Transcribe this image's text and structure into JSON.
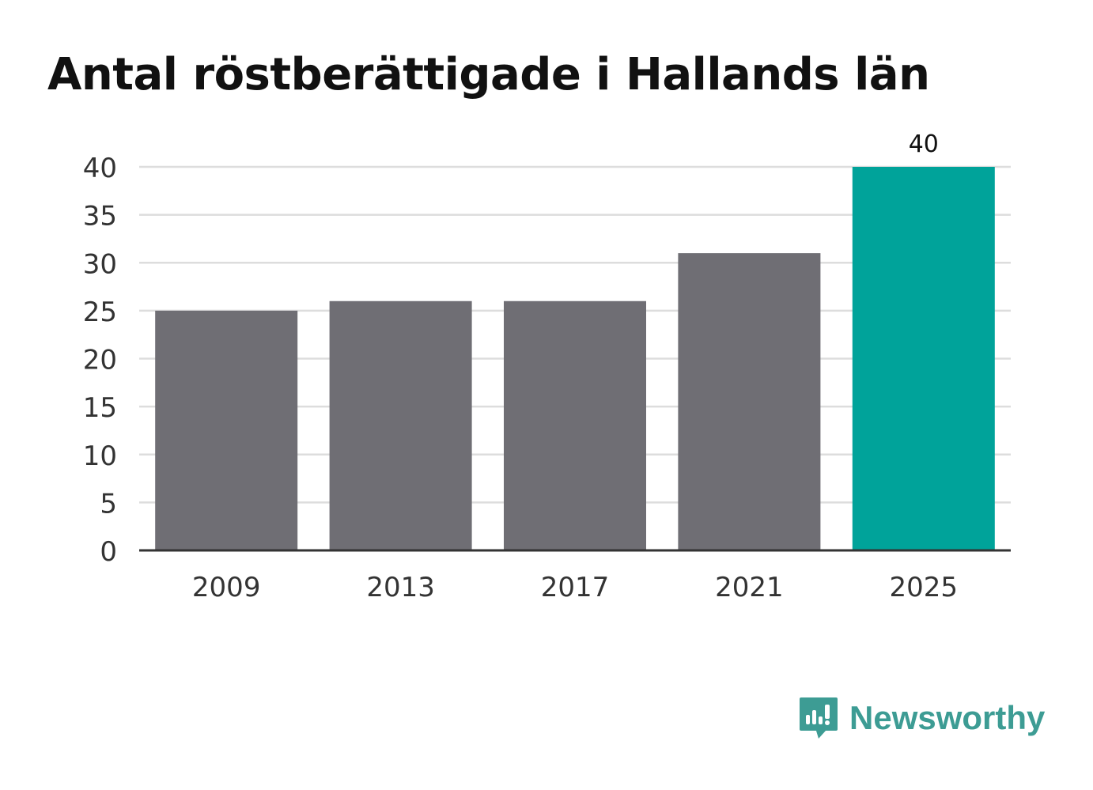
{
  "chart_data": {
    "type": "bar",
    "title": "Antal röstberättigade i Hallands län",
    "categories": [
      "2009",
      "2013",
      "2017",
      "2021",
      "2025"
    ],
    "values": [
      25,
      26,
      26,
      31,
      40
    ],
    "ylim": [
      0,
      40
    ],
    "yticks": [
      "0",
      "5",
      "10",
      "15",
      "20",
      "25",
      "30",
      "35",
      "40"
    ],
    "data_labels": [
      {
        "category": "2025",
        "label": "40"
      }
    ],
    "grid": true,
    "colors": {
      "default": "#6f6e74",
      "highlight": "#00a39a",
      "grid": "#dddddd",
      "axis": "#333333"
    },
    "highlight_category": "2025"
  },
  "brand": {
    "name": "Newsworthy",
    "icon": "newsworthy-logo-icon",
    "color": "#3d9c94"
  }
}
